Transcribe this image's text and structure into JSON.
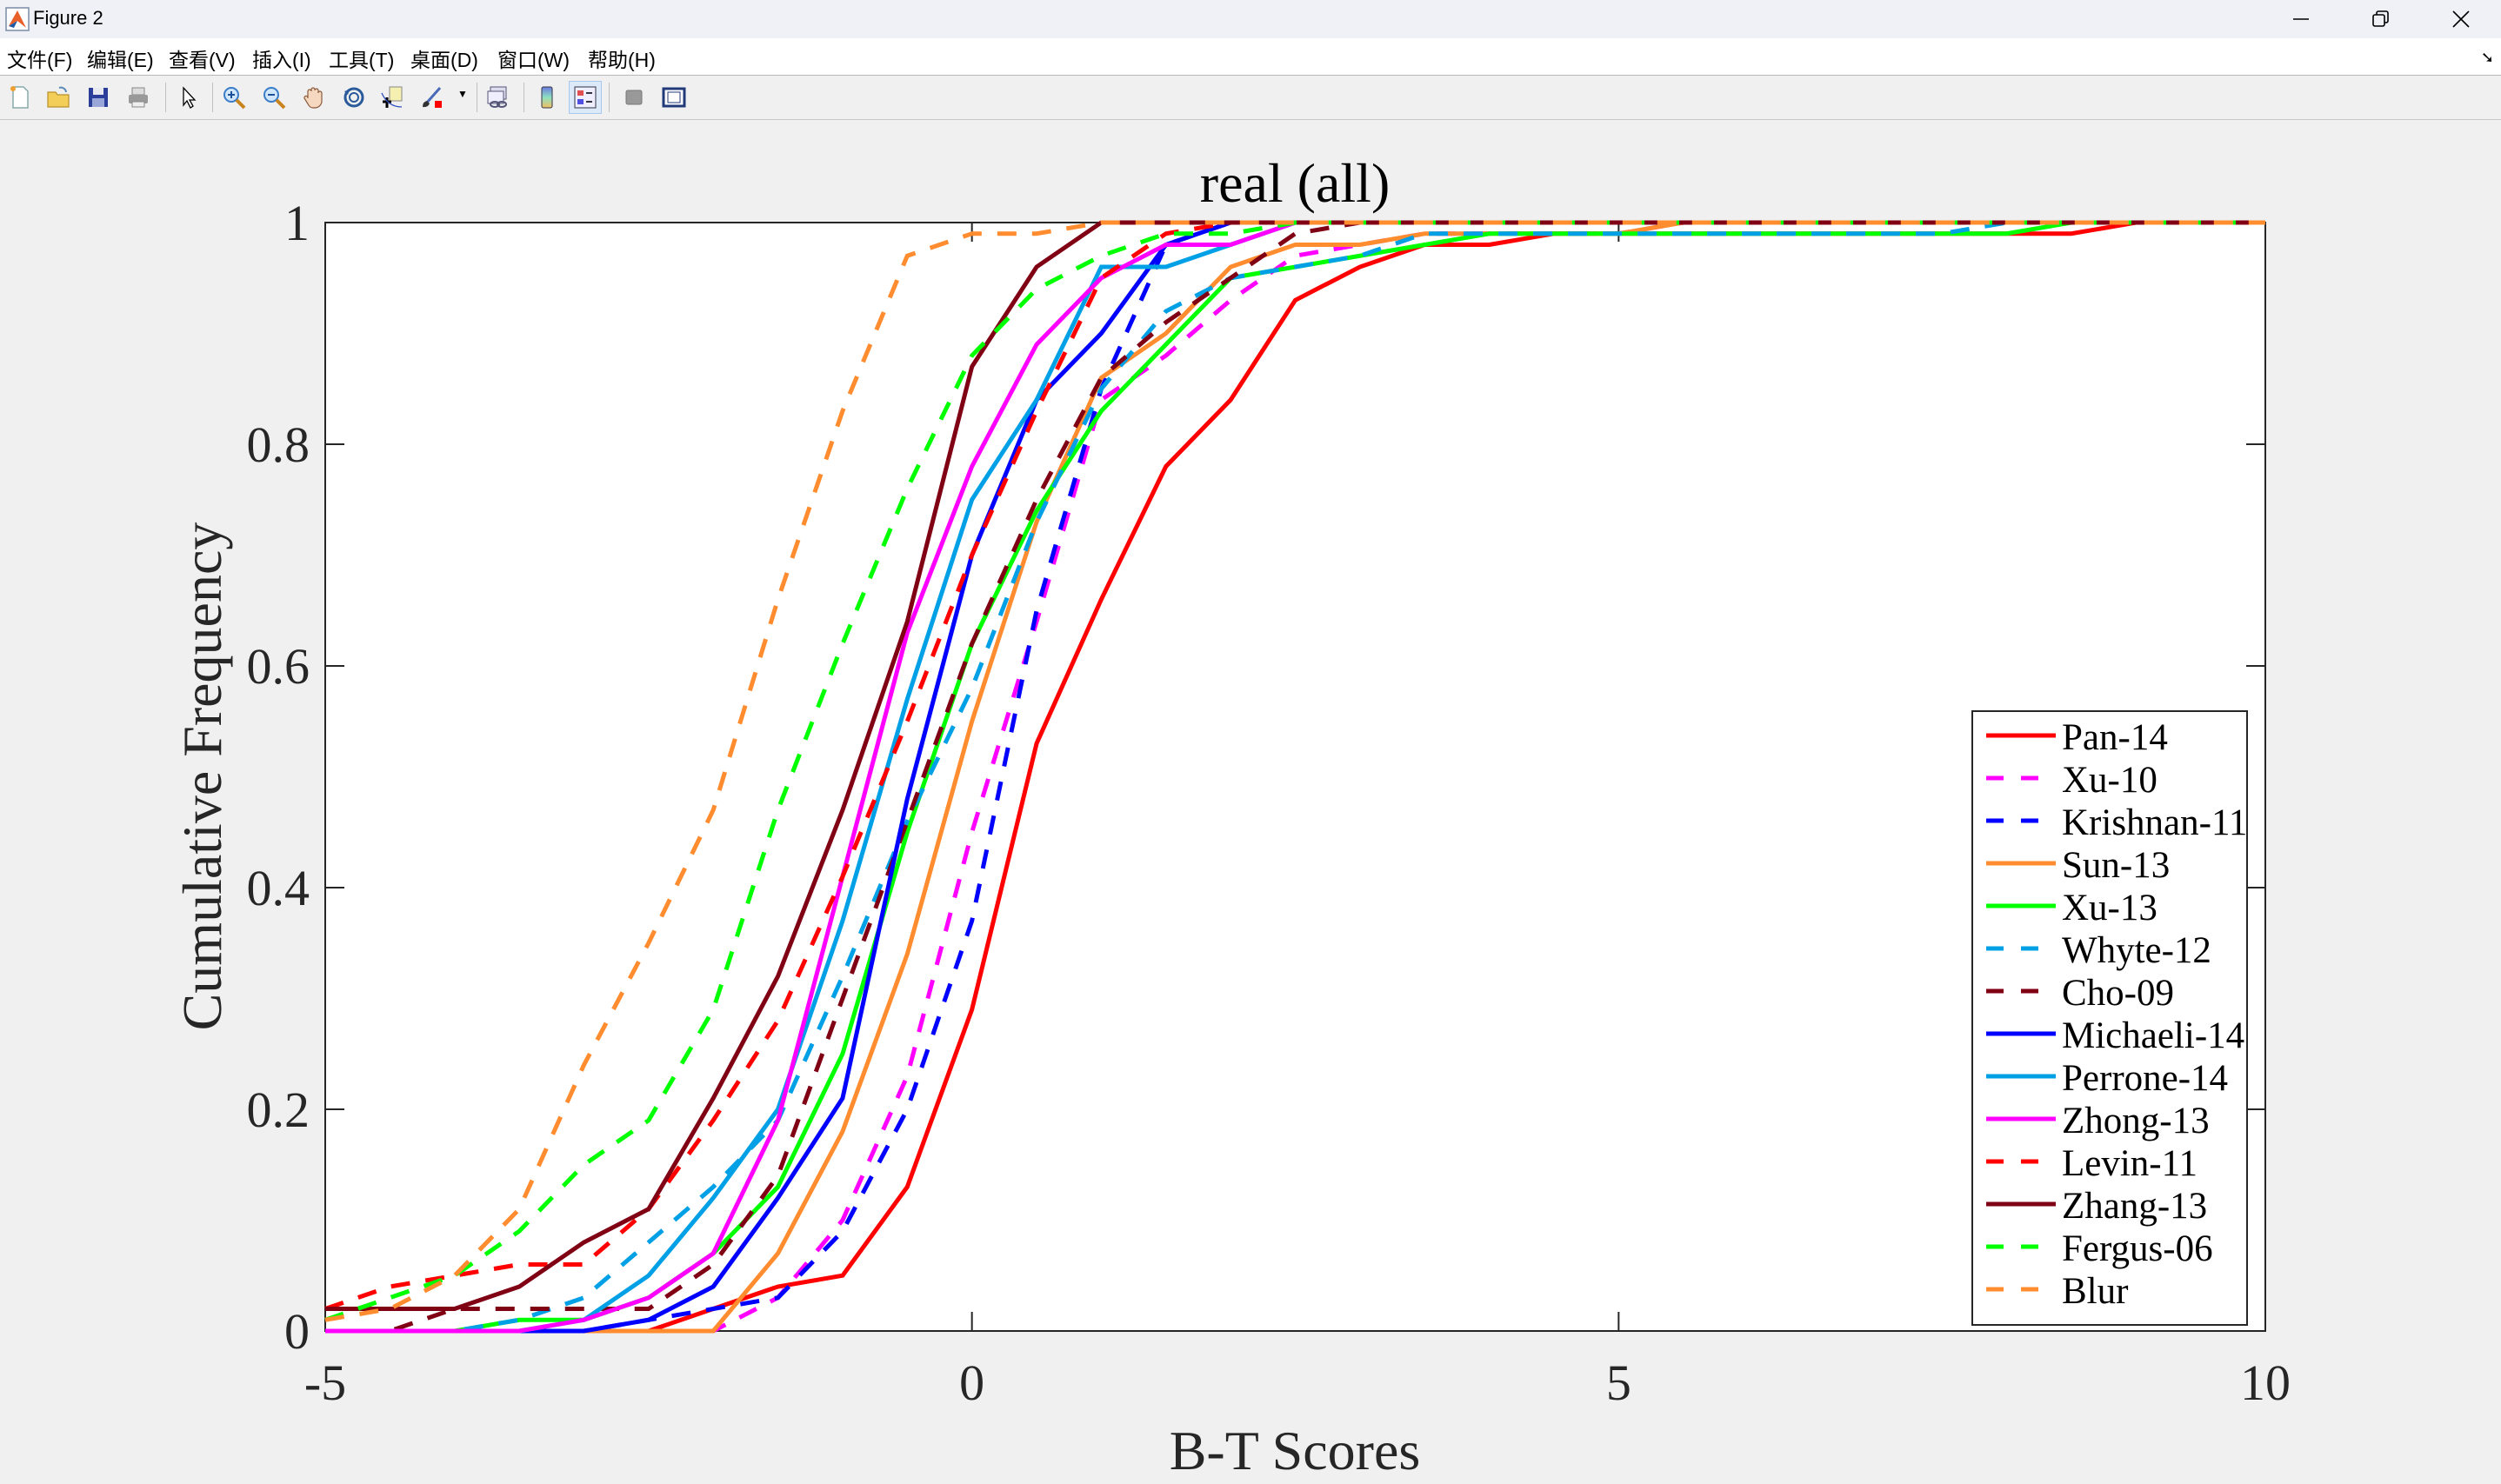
{
  "window": {
    "title": "Figure 2",
    "controls": {
      "minimize": "minimize-icon",
      "restore": "restore-icon",
      "close": "close-icon"
    }
  },
  "menubar": {
    "items": [
      "文件(F)",
      "编辑(E)",
      "查看(V)",
      "插入(I)",
      "工具(T)",
      "桌面(D)",
      "窗口(W)",
      "帮助(H)"
    ],
    "dock_icon": "undock-arrow-icon"
  },
  "toolbar": {
    "buttons": [
      "new-figure-icon",
      "open-file-icon",
      "save-icon",
      "print-icon",
      "edit-plot-arrow-icon",
      "zoom-in-icon",
      "zoom-out-icon",
      "pan-hand-icon",
      "rotate-3d-icon",
      "data-cursor-icon",
      "brush-icon",
      "link-plot-icon",
      "colorbar-icon",
      "legend-icon",
      "hide-plot-tools-icon",
      "show-plot-tools-icon"
    ]
  },
  "colors": {
    "red": "#ff0000",
    "magenta": "#ff00ff",
    "blue": "#0000ff",
    "orange": "#ff8c2f",
    "green": "#00ff00",
    "skyblue": "#00a0e6",
    "darkred": "#800014"
  },
  "chart_data": {
    "type": "line",
    "title": "real (all)",
    "xlabel": "B-T Scores",
    "ylabel": "Cumulative Frequency",
    "xlim": [
      -5,
      10
    ],
    "ylim": [
      0,
      1
    ],
    "xticks": [
      -5,
      0,
      5,
      10
    ],
    "yticks": [
      0,
      0.2,
      0.4,
      0.6,
      0.8,
      1
    ],
    "ytick_labels": [
      "0",
      "0.2",
      "0.4",
      "0.6",
      "0.8",
      "1"
    ],
    "grid": false,
    "legend_position": "lower right (inside)",
    "x": [
      -5,
      -4.5,
      -4,
      -3.5,
      -3,
      -2.5,
      -2,
      -1.5,
      -1,
      -0.5,
      0,
      0.5,
      1,
      1.5,
      2,
      2.5,
      3,
      3.5,
      4,
      4.5,
      5,
      5.5,
      6,
      6.5,
      7,
      7.5,
      8,
      8.5,
      9,
      9.5,
      10
    ],
    "series": [
      {
        "name": "Pan-14",
        "color": "#ff0000",
        "dash": "solid",
        "values": [
          0,
          0,
          0,
          0,
          0,
          0,
          0.02,
          0.04,
          0.05,
          0.13,
          0.29,
          0.53,
          0.66,
          0.78,
          0.84,
          0.93,
          0.96,
          0.98,
          0.98,
          0.99,
          0.99,
          0.99,
          0.99,
          0.99,
          0.99,
          0.99,
          0.99,
          0.99,
          1,
          1,
          1
        ]
      },
      {
        "name": "Xu-10",
        "color": "#ff00ff",
        "dash": "dashed",
        "values": [
          0,
          0,
          0,
          0,
          0,
          0,
          0,
          0.03,
          0.1,
          0.23,
          0.45,
          0.64,
          0.84,
          0.88,
          0.93,
          0.97,
          0.98,
          0.99,
          0.99,
          0.99,
          0.99,
          1,
          1,
          1,
          1,
          1,
          1,
          1,
          1,
          1,
          1
        ]
      },
      {
        "name": "Krishnan-11",
        "color": "#0000ff",
        "dash": "dashed",
        "values": [
          0,
          0,
          0,
          0,
          0,
          0.01,
          0.02,
          0.03,
          0.09,
          0.2,
          0.37,
          0.65,
          0.85,
          0.98,
          1,
          1,
          1,
          1,
          1,
          1,
          1,
          1,
          1,
          1,
          1,
          1,
          1,
          1,
          1,
          1,
          1
        ]
      },
      {
        "name": "Sun-13",
        "color": "#ff8c2f",
        "dash": "solid",
        "values": [
          0,
          0,
          0,
          0,
          0,
          0,
          0,
          0.07,
          0.18,
          0.34,
          0.55,
          0.73,
          0.86,
          0.9,
          0.96,
          0.98,
          0.98,
          0.99,
          0.99,
          0.99,
          0.99,
          1,
          1,
          1,
          1,
          1,
          1,
          1,
          1,
          1,
          1
        ]
      },
      {
        "name": "Xu-13",
        "color": "#00ff00",
        "dash": "solid",
        "values": [
          0,
          0,
          0,
          0.01,
          0.01,
          0.03,
          0.07,
          0.13,
          0.25,
          0.45,
          0.62,
          0.74,
          0.83,
          0.89,
          0.95,
          0.96,
          0.97,
          0.98,
          0.99,
          0.99,
          0.99,
          0.99,
          0.99,
          0.99,
          0.99,
          0.99,
          0.99,
          1,
          1,
          1,
          1
        ]
      },
      {
        "name": "Whyte-12",
        "color": "#00a0e6",
        "dash": "dashed",
        "values": [
          0,
          0,
          0,
          0.01,
          0.03,
          0.08,
          0.13,
          0.19,
          0.32,
          0.46,
          0.58,
          0.73,
          0.85,
          0.92,
          0.95,
          0.96,
          0.97,
          0.99,
          0.99,
          0.99,
          0.99,
          0.99,
          0.99,
          0.99,
          0.99,
          0.99,
          1,
          1,
          1,
          1,
          1
        ]
      },
      {
        "name": "Cho-09",
        "color": "#800014",
        "dash": "dashed",
        "values": [
          0,
          0,
          0.02,
          0.02,
          0.02,
          0.02,
          0.06,
          0.14,
          0.3,
          0.46,
          0.62,
          0.75,
          0.86,
          0.91,
          0.95,
          0.99,
          1,
          1,
          1,
          1,
          1,
          1,
          1,
          1,
          1,
          1,
          1,
          1,
          1,
          1,
          1
        ]
      },
      {
        "name": "Michaeli-14",
        "color": "#0000ff",
        "dash": "solid",
        "values": [
          0,
          0,
          0,
          0,
          0,
          0.01,
          0.04,
          0.12,
          0.21,
          0.48,
          0.7,
          0.84,
          0.9,
          0.98,
          1,
          1,
          1,
          1,
          1,
          1,
          1,
          1,
          1,
          1,
          1,
          1,
          1,
          1,
          1,
          1,
          1
        ]
      },
      {
        "name": "Perrone-14",
        "color": "#00a0e6",
        "dash": "solid",
        "values": [
          0,
          0,
          0,
          0,
          0.01,
          0.05,
          0.12,
          0.2,
          0.37,
          0.57,
          0.75,
          0.84,
          0.96,
          0.96,
          0.98,
          1,
          1,
          1,
          1,
          1,
          1,
          1,
          1,
          1,
          1,
          1,
          1,
          1,
          1,
          1,
          1
        ]
      },
      {
        "name": "Zhong-13",
        "color": "#ff00ff",
        "dash": "solid",
        "values": [
          0,
          0,
          0,
          0,
          0.01,
          0.03,
          0.07,
          0.19,
          0.41,
          0.63,
          0.78,
          0.89,
          0.95,
          0.98,
          0.98,
          1,
          1,
          1,
          1,
          1,
          1,
          1,
          1,
          1,
          1,
          1,
          1,
          1,
          1,
          1,
          1
        ]
      },
      {
        "name": "Levin-11",
        "color": "#ff0000",
        "dash": "dashed",
        "values": [
          0.02,
          0.04,
          0.05,
          0.06,
          0.06,
          0.11,
          0.19,
          0.28,
          0.41,
          0.55,
          0.7,
          0.83,
          0.95,
          0.99,
          1,
          1,
          1,
          1,
          1,
          1,
          1,
          1,
          1,
          1,
          1,
          1,
          1,
          1,
          1,
          1,
          1
        ]
      },
      {
        "name": "Zhang-13",
        "color": "#800014",
        "dash": "solid",
        "values": [
          0.02,
          0.02,
          0.02,
          0.04,
          0.08,
          0.11,
          0.21,
          0.32,
          0.47,
          0.64,
          0.87,
          0.96,
          1,
          1,
          1,
          1,
          1,
          1,
          1,
          1,
          1,
          1,
          1,
          1,
          1,
          1,
          1,
          1,
          1,
          1,
          1
        ]
      },
      {
        "name": "Fergus-06",
        "color": "#00ff00",
        "dash": "dashed",
        "values": [
          0.01,
          0.03,
          0.05,
          0.09,
          0.15,
          0.19,
          0.29,
          0.47,
          0.62,
          0.76,
          0.88,
          0.94,
          0.97,
          0.99,
          0.99,
          1,
          1,
          1,
          1,
          1,
          1,
          1,
          1,
          1,
          1,
          1,
          1,
          1,
          1,
          1,
          1
        ]
      },
      {
        "name": "Blur",
        "color": "#ff8c2f",
        "dash": "dashed",
        "values": [
          0.01,
          0.02,
          0.05,
          0.11,
          0.24,
          0.35,
          0.47,
          0.66,
          0.83,
          0.97,
          0.99,
          0.99,
          1,
          1,
          1,
          1,
          1,
          1,
          1,
          1,
          1,
          1,
          1,
          1,
          1,
          1,
          1,
          1,
          1,
          1,
          1
        ]
      }
    ]
  }
}
